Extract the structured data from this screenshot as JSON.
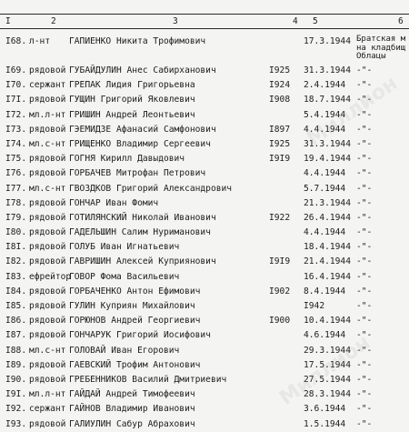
{
  "header": {
    "col1": "I",
    "col2": "2",
    "col3": "3",
    "col4": "4",
    "col5": "5",
    "col6": "6"
  },
  "burial_text": [
    "Братская м",
    "на кладбищ",
    "Облацы"
  ],
  "rows": [
    {
      "no": "I68.",
      "rank": "л-нт",
      "name": "ГАПИЕНКО Никита Трофимович",
      "year": "",
      "date": "17.3.1944",
      "burial": ""
    },
    {
      "no": "I69.",
      "rank": "рядовой",
      "name": "ГУБАЙДУЛИН Анес Сабирханович",
      "year": "I925",
      "date": "31.3.1944",
      "burial": "-\"-"
    },
    {
      "no": "I70.",
      "rank": "сержант",
      "name": "ГРЕПАК Лидия Григорьевна",
      "year": "I924",
      "date": "2.4.1944",
      "burial": "-\"-"
    },
    {
      "no": "I7I.",
      "rank": "рядовой",
      "name": "ГУЩИН Григорий Яковлевич",
      "year": "I908",
      "date": "18.7.1944",
      "burial": "-\"-"
    },
    {
      "no": "I72.",
      "rank": "мл.л-нт",
      "name": "ГРИШИН Андрей Леонтьевич",
      "year": "",
      "date": "5.4.1944",
      "burial": "-\"-"
    },
    {
      "no": "I73.",
      "rank": "рядовой",
      "name": "ГЭЕМИДЗЕ Афанасий Самфонович",
      "year": "I897",
      "date": "4.4.1944",
      "burial": "-\"-"
    },
    {
      "no": "I74.",
      "rank": "мл.с-нт",
      "name": "ГРИЩЕНКО Владимир Сергеевич",
      "year": "I925",
      "date": "31.3.1944",
      "burial": "-\"-"
    },
    {
      "no": "I75.",
      "rank": "рядовой",
      "name": "ГОГНЯ Кирилл Давыдович",
      "year": "I9I9",
      "date": "19.4.1944",
      "burial": "-\"-"
    },
    {
      "no": "I76.",
      "rank": "рядовой",
      "name": "ГОРБАЧЕВ Митрофан Петрович",
      "year": "",
      "date": "4.4.1944",
      "burial": "-\"-"
    },
    {
      "no": "I77.",
      "rank": "мл.с-нт",
      "name": "ГВОЗДКОВ Григорий Александрович",
      "year": "",
      "date": "5.7.1944",
      "burial": "-\"-"
    },
    {
      "no": "I78.",
      "rank": "рядовой",
      "name": "ГОНЧАР Иван Фомич",
      "year": "",
      "date": "21.3.1944",
      "burial": "-\"-"
    },
    {
      "no": "I79.",
      "rank": "рядовой",
      "name": "ГОТИЛЯНСКИЙ Николай Иванович",
      "year": "I922",
      "date": "26.4.1944",
      "burial": "-\"-"
    },
    {
      "no": "I80.",
      "rank": "рядовой",
      "name": "ГАДЕЛЬШИН Салим Нуриманович",
      "year": "",
      "date": "4.4.1944",
      "burial": "-\"-"
    },
    {
      "no": "I8I.",
      "rank": "рядовой",
      "name": "ГОЛУБ Иван Игнатьевич",
      "year": "",
      "date": "18.4.1944",
      "burial": "-\"-"
    },
    {
      "no": "I82.",
      "rank": "рядовой",
      "name": "ГАВРИШИН Алексей Куприянович",
      "year": "I9I9",
      "date": "21.4.1944",
      "burial": "-\"-"
    },
    {
      "no": "I83.",
      "rank": "ефрейтор",
      "name": "ГОВОР Фома Васильевич",
      "year": "",
      "date": "16.4.1944",
      "burial": "-\"-"
    },
    {
      "no": "I84.",
      "rank": "рядовой",
      "name": "ГОРБАЧЕНКО Антон Ефимович",
      "year": "I902",
      "date": "8.4.1944",
      "burial": "-\"-"
    },
    {
      "no": "I85.",
      "rank": "рядовой",
      "name": "ГУЛИН Куприян Михайлович",
      "year": "",
      "date": "I942",
      "burial": "-\"-"
    },
    {
      "no": "I86.",
      "rank": "рядовой",
      "name": "ГОРЮНОВ Андрей Георгиевич",
      "year": "I900",
      "date": "10.4.1944",
      "burial": "-\"-"
    },
    {
      "no": "I87.",
      "rank": "рядовой",
      "name": "ГОНЧАРУК Григорий Иосифович",
      "year": "",
      "date": "4.6.1944",
      "burial": "-\"-"
    },
    {
      "no": "I88.",
      "rank": "мл.с-нт",
      "name": "ГОЛОВАЙ Иван Егорович",
      "year": "",
      "date": "29.3.1944",
      "burial": "-\"-"
    },
    {
      "no": "I89.",
      "rank": "рядовой",
      "name": "ГАЕВСКИЙ Трофим Антонович",
      "year": "",
      "date": "17.5.1944",
      "burial": "-\"-"
    },
    {
      "no": "I90.",
      "rank": "рядовой",
      "name": "ГРЕБЕННИКОВ Василий Дмитриевич",
      "year": "",
      "date": "27.5.1944",
      "burial": "-\"-"
    },
    {
      "no": "I9I.",
      "rank": "мл.л-нт",
      "name": "ГАЙДАЙ Андрей Тимофеевич",
      "year": "",
      "date": "28.3.1944",
      "burial": "-\"-"
    },
    {
      "no": "I92.",
      "rank": "сержант",
      "name": "ГАЙНОВ Владимир Иванович",
      "year": "",
      "date": "3.6.1944",
      "burial": "-\"-"
    },
    {
      "no": "I93.",
      "rank": "рядовой",
      "name": "ГАЛИУЛИН Сабур Абрахович",
      "year": "",
      "date": "1.5.1944",
      "burial": "-\"-"
    }
  ]
}
